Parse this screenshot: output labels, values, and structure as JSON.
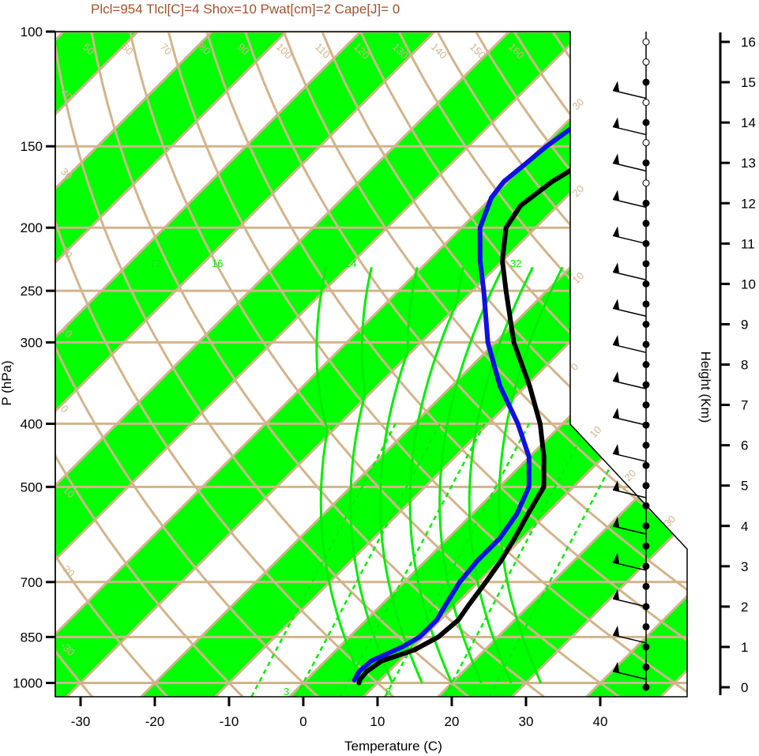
{
  "chart_data": {
    "type": "skew-t log-p sounding",
    "title": "Plcl=954 Tlcl[C]=4 Shox=10 Pwat[cm]=2 Cape[J]= 0",
    "xlabel": "Temperature (C)",
    "ylabel": "P (hPa)",
    "y2label": "Height (Km)",
    "x_ticks": [
      -30,
      -20,
      -10,
      0,
      10,
      20,
      30,
      40
    ],
    "xlim": [
      -34,
      51
    ],
    "pressure_ticks": [
      100,
      150,
      200,
      250,
      300,
      400,
      500,
      700,
      850,
      1000
    ],
    "ylim_hpa": [
      1050,
      100
    ],
    "height_ticks_km": [
      0,
      1,
      2,
      3,
      4,
      5,
      6,
      7,
      8,
      9,
      10,
      11,
      12,
      13,
      14,
      15,
      16
    ],
    "colors": {
      "temperature": "#000000",
      "dewpoint": "#1010e0",
      "isotherm_band": "#00ff00",
      "isopleth": "#d2b48c",
      "moist_adiabat": "#00ee00",
      "title": "#a0522d"
    },
    "temperature_profile": [
      {
        "p": 1000,
        "t": 7.5
      },
      {
        "p": 990,
        "t": 7.2
      },
      {
        "p": 960,
        "t": 7.0
      },
      {
        "p": 925,
        "t": 7.6
      },
      {
        "p": 890,
        "t": 10.5
      },
      {
        "p": 850,
        "t": 12.0
      },
      {
        "p": 800,
        "t": 12.4
      },
      {
        "p": 760,
        "t": 11.8
      },
      {
        "p": 700,
        "t": 11.0
      },
      {
        "p": 650,
        "t": 10.2
      },
      {
        "p": 600,
        "t": 9.0
      },
      {
        "p": 550,
        "t": 7.5
      },
      {
        "p": 500,
        "t": 6.0
      },
      {
        "p": 450,
        "t": 2.0
      },
      {
        "p": 400,
        "t": -3.0
      },
      {
        "p": 350,
        "t": -9.5
      },
      {
        "p": 300,
        "t": -17.5
      },
      {
        "p": 250,
        "t": -25.5
      },
      {
        "p": 225,
        "t": -30.0
      },
      {
        "p": 200,
        "t": -34.0
      },
      {
        "p": 185,
        "t": -35.0
      },
      {
        "p": 170,
        "t": -34.0
      },
      {
        "p": 160,
        "t": -32.5
      },
      {
        "p": 150,
        "t": -30.5
      },
      {
        "p": 140,
        "t": -28.5
      },
      {
        "p": 130,
        "t": -27.0
      },
      {
        "p": 120,
        "t": -25.5
      },
      {
        "p": 110,
        "t": -23.5
      },
      {
        "p": 105,
        "t": -22.5
      }
    ],
    "dewpoint_profile": [
      {
        "p": 990,
        "t": 6.5
      },
      {
        "p": 960,
        "t": 6.0
      },
      {
        "p": 925,
        "t": 6.2
      },
      {
        "p": 880,
        "t": 8.5
      },
      {
        "p": 850,
        "t": 9.5
      },
      {
        "p": 800,
        "t": 9.5
      },
      {
        "p": 750,
        "t": 8.5
      },
      {
        "p": 700,
        "t": 7.5
      },
      {
        "p": 650,
        "t": 7.0
      },
      {
        "p": 600,
        "t": 7.0
      },
      {
        "p": 550,
        "t": 6.0
      },
      {
        "p": 500,
        "t": 4.0
      },
      {
        "p": 450,
        "t": 0.0
      },
      {
        "p": 400,
        "t": -6.0
      },
      {
        "p": 350,
        "t": -13.5
      },
      {
        "p": 300,
        "t": -21.0
      },
      {
        "p": 250,
        "t": -28.5
      },
      {
        "p": 225,
        "t": -33.0
      },
      {
        "p": 200,
        "t": -37.5
      },
      {
        "p": 180,
        "t": -40.0
      },
      {
        "p": 170,
        "t": -40.5
      },
      {
        "p": 160,
        "t": -40.0
      },
      {
        "p": 150,
        "t": -39.5
      },
      {
        "p": 140,
        "t": -38.5
      },
      {
        "p": 130,
        "t": -37.5
      },
      {
        "p": 120,
        "t": -37.0
      },
      {
        "p": 110,
        "t": -35.5
      },
      {
        "p": 105,
        "t": -34.5
      }
    ],
    "band_labels": [
      "50",
      "60",
      "70",
      "80",
      "90",
      "100",
      "110",
      "120",
      "130",
      "140",
      "150",
      "160",
      "40",
      "30",
      "20",
      "10",
      "0",
      "-10",
      "-20",
      "-30"
    ],
    "moist_labels": [
      "12",
      "16",
      "24",
      "32"
    ],
    "mixing_labels": [
      "3",
      "8"
    ],
    "right_side_labels": [
      "30",
      "20",
      "10",
      "0",
      "10",
      "20",
      "30"
    ]
  }
}
